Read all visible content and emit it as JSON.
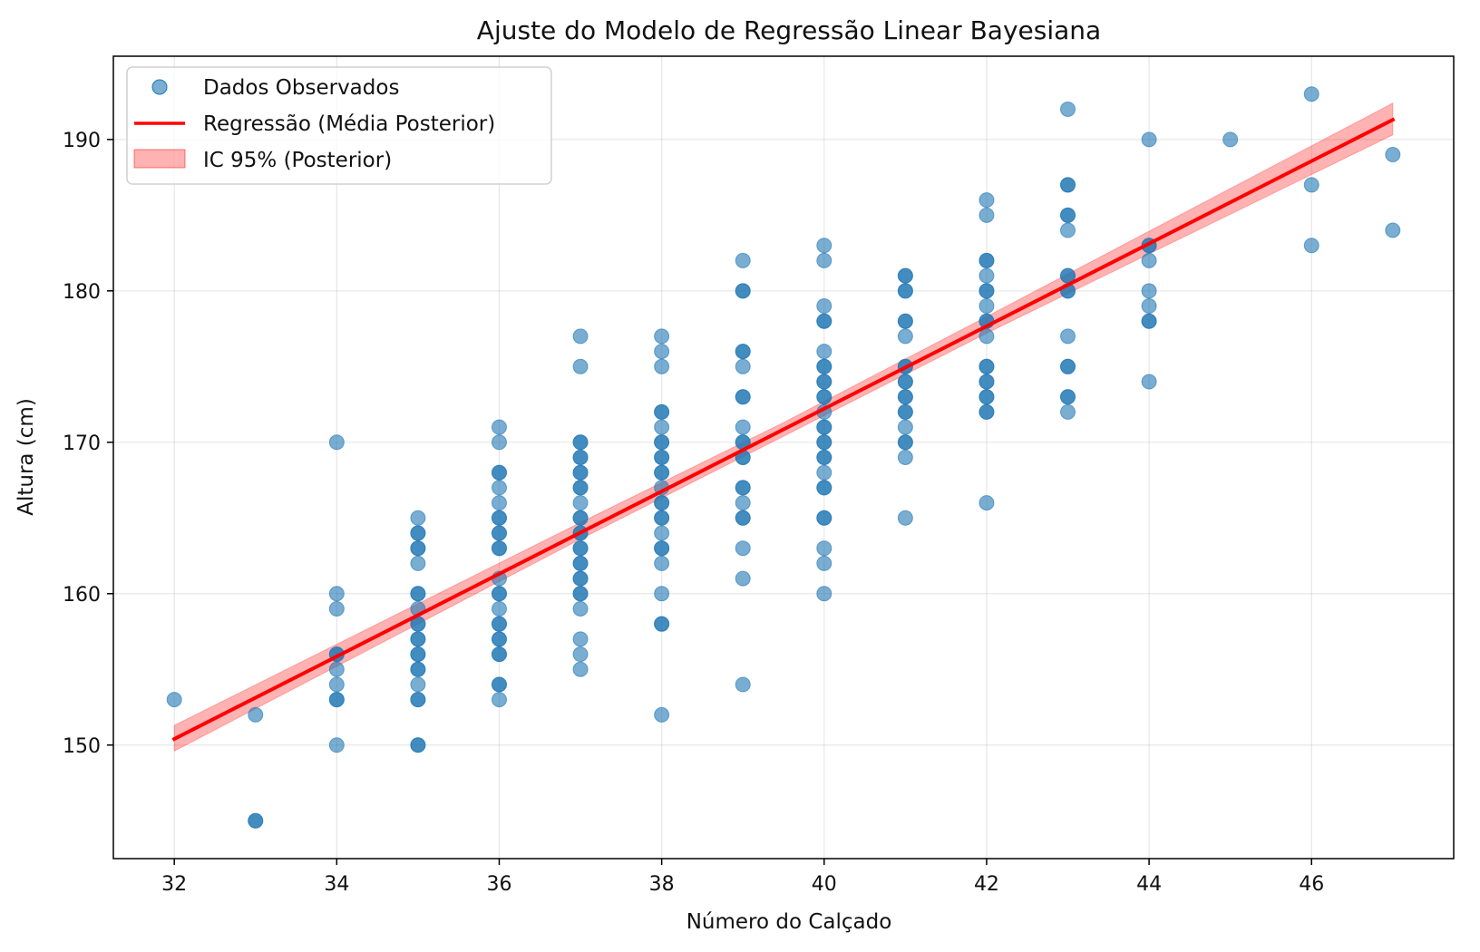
{
  "chart_data": {
    "type": "scatter",
    "title": "Ajuste do Modelo de Regressão Linear Bayesiana",
    "xlabel": "Número do Calçado",
    "ylabel": "Altura (cm)",
    "xlim": [
      31.25,
      47.75
    ],
    "ylim": [
      142.5,
      195.5
    ],
    "xticks": [
      32,
      34,
      36,
      38,
      40,
      42,
      44,
      46
    ],
    "yticks": [
      150,
      160,
      170,
      180,
      190
    ],
    "grid": true,
    "legend": {
      "position": "top-left",
      "entries": [
        {
          "label": "Dados Observados",
          "kind": "marker"
        },
        {
          "label": "Regressão (Média Posterior)",
          "kind": "line"
        },
        {
          "label": "IC 95% (Posterior)",
          "kind": "band"
        }
      ]
    },
    "series": [
      {
        "name": "Dados Observados",
        "kind": "scatter",
        "color": "#1f77b4",
        "points": [
          [
            32,
            153
          ],
          [
            33,
            152
          ],
          [
            33,
            145
          ],
          [
            33,
            145
          ],
          [
            34,
            170
          ],
          [
            34,
            160
          ],
          [
            34,
            159
          ],
          [
            34,
            156
          ],
          [
            34,
            156
          ],
          [
            34,
            155
          ],
          [
            34,
            154
          ],
          [
            34,
            153
          ],
          [
            34,
            153
          ],
          [
            34,
            150
          ],
          [
            35,
            165
          ],
          [
            35,
            164
          ],
          [
            35,
            164
          ],
          [
            35,
            163
          ],
          [
            35,
            163
          ],
          [
            35,
            162
          ],
          [
            35,
            160
          ],
          [
            35,
            160
          ],
          [
            35,
            159
          ],
          [
            35,
            158
          ],
          [
            35,
            158
          ],
          [
            35,
            157
          ],
          [
            35,
            157
          ],
          [
            35,
            156
          ],
          [
            35,
            156
          ],
          [
            35,
            155
          ],
          [
            35,
            155
          ],
          [
            35,
            154
          ],
          [
            35,
            153
          ],
          [
            35,
            153
          ],
          [
            35,
            150
          ],
          [
            35,
            150
          ],
          [
            36,
            171
          ],
          [
            36,
            170
          ],
          [
            36,
            168
          ],
          [
            36,
            168
          ],
          [
            36,
            167
          ],
          [
            36,
            166
          ],
          [
            36,
            165
          ],
          [
            36,
            165
          ],
          [
            36,
            164
          ],
          [
            36,
            164
          ],
          [
            36,
            163
          ],
          [
            36,
            163
          ],
          [
            36,
            161
          ],
          [
            36,
            160
          ],
          [
            36,
            160
          ],
          [
            36,
            159
          ],
          [
            36,
            158
          ],
          [
            36,
            158
          ],
          [
            36,
            157
          ],
          [
            36,
            157
          ],
          [
            36,
            156
          ],
          [
            36,
            156
          ],
          [
            36,
            154
          ],
          [
            36,
            154
          ],
          [
            36,
            153
          ],
          [
            37,
            177
          ],
          [
            37,
            175
          ],
          [
            37,
            170
          ],
          [
            37,
            170
          ],
          [
            37,
            169
          ],
          [
            37,
            169
          ],
          [
            37,
            168
          ],
          [
            37,
            168
          ],
          [
            37,
            167
          ],
          [
            37,
            167
          ],
          [
            37,
            166
          ],
          [
            37,
            165
          ],
          [
            37,
            165
          ],
          [
            37,
            164
          ],
          [
            37,
            164
          ],
          [
            37,
            163
          ],
          [
            37,
            163
          ],
          [
            37,
            162
          ],
          [
            37,
            162
          ],
          [
            37,
            161
          ],
          [
            37,
            161
          ],
          [
            37,
            160
          ],
          [
            37,
            160
          ],
          [
            37,
            159
          ],
          [
            37,
            157
          ],
          [
            37,
            156
          ],
          [
            37,
            155
          ],
          [
            38,
            177
          ],
          [
            38,
            176
          ],
          [
            38,
            175
          ],
          [
            38,
            172
          ],
          [
            38,
            172
          ],
          [
            38,
            171
          ],
          [
            38,
            170
          ],
          [
            38,
            170
          ],
          [
            38,
            169
          ],
          [
            38,
            169
          ],
          [
            38,
            168
          ],
          [
            38,
            168
          ],
          [
            38,
            167
          ],
          [
            38,
            166
          ],
          [
            38,
            166
          ],
          [
            38,
            165
          ],
          [
            38,
            165
          ],
          [
            38,
            164
          ],
          [
            38,
            163
          ],
          [
            38,
            163
          ],
          [
            38,
            162
          ],
          [
            38,
            160
          ],
          [
            38,
            158
          ],
          [
            38,
            158
          ],
          [
            38,
            152
          ],
          [
            39,
            182
          ],
          [
            39,
            180
          ],
          [
            39,
            180
          ],
          [
            39,
            176
          ],
          [
            39,
            176
          ],
          [
            39,
            175
          ],
          [
            39,
            173
          ],
          [
            39,
            173
          ],
          [
            39,
            171
          ],
          [
            39,
            170
          ],
          [
            39,
            170
          ],
          [
            39,
            169
          ],
          [
            39,
            169
          ],
          [
            39,
            167
          ],
          [
            39,
            167
          ],
          [
            39,
            166
          ],
          [
            39,
            165
          ],
          [
            39,
            165
          ],
          [
            39,
            163
          ],
          [
            39,
            161
          ],
          [
            39,
            154
          ],
          [
            40,
            183
          ],
          [
            40,
            182
          ],
          [
            40,
            179
          ],
          [
            40,
            178
          ],
          [
            40,
            178
          ],
          [
            40,
            176
          ],
          [
            40,
            175
          ],
          [
            40,
            175
          ],
          [
            40,
            174
          ],
          [
            40,
            174
          ],
          [
            40,
            173
          ],
          [
            40,
            173
          ],
          [
            40,
            172
          ],
          [
            40,
            171
          ],
          [
            40,
            171
          ],
          [
            40,
            170
          ],
          [
            40,
            170
          ],
          [
            40,
            169
          ],
          [
            40,
            169
          ],
          [
            40,
            168
          ],
          [
            40,
            167
          ],
          [
            40,
            167
          ],
          [
            40,
            165
          ],
          [
            40,
            165
          ],
          [
            40,
            163
          ],
          [
            40,
            162
          ],
          [
            40,
            160
          ],
          [
            41,
            181
          ],
          [
            41,
            181
          ],
          [
            41,
            180
          ],
          [
            41,
            180
          ],
          [
            41,
            178
          ],
          [
            41,
            178
          ],
          [
            41,
            177
          ],
          [
            41,
            175
          ],
          [
            41,
            175
          ],
          [
            41,
            174
          ],
          [
            41,
            174
          ],
          [
            41,
            173
          ],
          [
            41,
            173
          ],
          [
            41,
            172
          ],
          [
            41,
            172
          ],
          [
            41,
            171
          ],
          [
            41,
            170
          ],
          [
            41,
            170
          ],
          [
            41,
            169
          ],
          [
            41,
            165
          ],
          [
            42,
            186
          ],
          [
            42,
            185
          ],
          [
            42,
            182
          ],
          [
            42,
            182
          ],
          [
            42,
            181
          ],
          [
            42,
            180
          ],
          [
            42,
            180
          ],
          [
            42,
            179
          ],
          [
            42,
            178
          ],
          [
            42,
            178
          ],
          [
            42,
            177
          ],
          [
            42,
            175
          ],
          [
            42,
            175
          ],
          [
            42,
            174
          ],
          [
            42,
            174
          ],
          [
            42,
            173
          ],
          [
            42,
            173
          ],
          [
            42,
            172
          ],
          [
            42,
            172
          ],
          [
            42,
            166
          ],
          [
            43,
            192
          ],
          [
            43,
            187
          ],
          [
            43,
            187
          ],
          [
            43,
            185
          ],
          [
            43,
            185
          ],
          [
            43,
            184
          ],
          [
            43,
            181
          ],
          [
            43,
            181
          ],
          [
            43,
            180
          ],
          [
            43,
            180
          ],
          [
            43,
            177
          ],
          [
            43,
            175
          ],
          [
            43,
            175
          ],
          [
            43,
            173
          ],
          [
            43,
            173
          ],
          [
            43,
            172
          ],
          [
            44,
            190
          ],
          [
            44,
            183
          ],
          [
            44,
            183
          ],
          [
            44,
            182
          ],
          [
            44,
            180
          ],
          [
            44,
            179
          ],
          [
            44,
            178
          ],
          [
            44,
            178
          ],
          [
            44,
            174
          ],
          [
            45,
            190
          ],
          [
            46,
            193
          ],
          [
            46,
            187
          ],
          [
            46,
            183
          ],
          [
            47,
            189
          ],
          [
            47,
            184
          ]
        ]
      },
      {
        "name": "Regressão (Média Posterior)",
        "kind": "line",
        "color": "#ff0000",
        "x": [
          32,
          47
        ],
        "y": [
          150.4,
          191.3
        ]
      },
      {
        "name": "IC 95% (Posterior)",
        "kind": "band",
        "color": "#ff0000",
        "x": [
          32,
          37,
          39.5,
          42,
          47
        ],
        "lower": [
          149.6,
          163.6,
          170.4,
          177.2,
          190.3
        ],
        "upper": [
          151.3,
          164.7,
          171.3,
          178.3,
          192.4
        ]
      }
    ]
  }
}
